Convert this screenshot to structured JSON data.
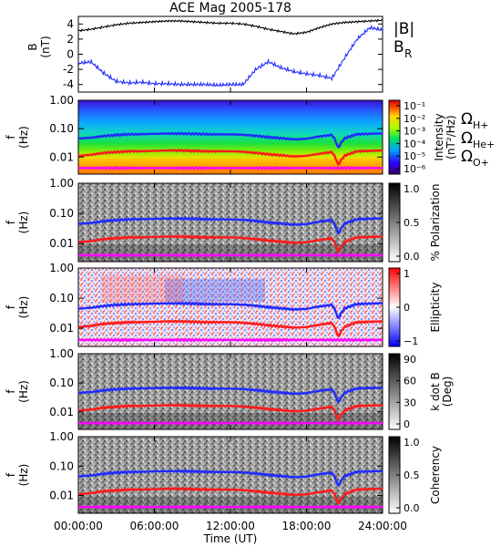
{
  "title": "ACE Mag 2005-178",
  "colors": {
    "black": "#000000",
    "hplus": "#1f2bff",
    "heplus": "#ff1a1a",
    "oplus": "#ff00ff",
    "br": "#1f2bff",
    "babs": "#000000"
  },
  "chart_data": [
    {
      "type": "line",
      "panel": "magnetic-field",
      "xlabel": "",
      "ylabel": "B",
      "yunit": "(nT)",
      "ylim": [
        -5,
        5
      ],
      "yticks": [
        "4",
        "2",
        "0",
        "-2",
        "-4"
      ],
      "x_hours": [
        0,
        1,
        2,
        3,
        4,
        5,
        6,
        7,
        8,
        9,
        10,
        11,
        12,
        13,
        14,
        15,
        16,
        17,
        18,
        19,
        20,
        21,
        22,
        23,
        24
      ],
      "series": [
        {
          "name": "|B|",
          "values": [
            3.1,
            3.3,
            3.6,
            3.9,
            4.1,
            4.2,
            4.3,
            4.4,
            4.4,
            4.3,
            4.2,
            4.1,
            4.1,
            4.0,
            3.7,
            3.3,
            3.0,
            2.7,
            2.9,
            3.5,
            4.0,
            4.2,
            4.3,
            4.4,
            4.5
          ]
        },
        {
          "name": "B_R",
          "values": [
            -1.2,
            -1.0,
            -2.5,
            -3.6,
            -3.8,
            -3.7,
            -3.9,
            -3.9,
            -4.0,
            -4.0,
            -4.0,
            -4.1,
            -4.0,
            -4.0,
            -2.0,
            -1.0,
            -1.8,
            -2.3,
            -2.6,
            -2.8,
            -3.2,
            -0.5,
            2.0,
            3.5,
            3.2
          ]
        }
      ]
    },
    {
      "type": "heatmap",
      "panel": "intensity",
      "ylabel": "f",
      "yunit": "(Hz)",
      "yscale": "log",
      "yticks": [
        "1.00",
        "0.10",
        "0.01"
      ],
      "colorbar_label": "Intensity",
      "colorbar_unit": "(nT²/Hz)",
      "colorbar_ticks": [
        "10⁻¹",
        "10⁻²",
        "10⁻³",
        "10⁻⁴",
        "10⁻⁵",
        "10⁻⁶"
      ]
    },
    {
      "type": "heatmap",
      "panel": "polarization",
      "ylabel": "f",
      "yunit": "(Hz)",
      "yscale": "log",
      "yticks": [
        "1.00",
        "0.10",
        "0.01"
      ],
      "colorbar_label": "% Polarization",
      "colorbar_ticks": [
        "1.0",
        "0.5",
        "0.0"
      ]
    },
    {
      "type": "heatmap",
      "panel": "ellipticity",
      "ylabel": "f",
      "yunit": "(Hz)",
      "yscale": "log",
      "yticks": [
        "1.00",
        "0.10",
        "0.01"
      ],
      "colorbar_label": "Ellipticity",
      "colorbar_ticks": [
        "1",
        "0",
        "−1"
      ]
    },
    {
      "type": "heatmap",
      "panel": "k-dot-b",
      "ylabel": "f",
      "yunit": "(Hz)",
      "yscale": "log",
      "yticks": [
        "1.00",
        "0.10",
        "0.01"
      ],
      "colorbar_label": "k dot B",
      "colorbar_unit": "(Deg)",
      "colorbar_ticks": [
        "90",
        "60",
        "30",
        "0"
      ]
    },
    {
      "type": "heatmap",
      "panel": "coherency",
      "ylabel": "f",
      "yunit": "(Hz)",
      "yscale": "log",
      "yticks": [
        "1.00",
        "0.10",
        "0.01"
      ],
      "colorbar_label": "Coherency",
      "colorbar_ticks": [
        "1.0",
        "0.5",
        "0.0"
      ]
    }
  ],
  "gyro_lines": {
    "x_hours": [
      0,
      1,
      2,
      3,
      4,
      5,
      6,
      7,
      8,
      9,
      10,
      11,
      12,
      13,
      14,
      15,
      16,
      17,
      18,
      19,
      20,
      20.5,
      21,
      22,
      23,
      24
    ],
    "hplus_hz": [
      0.045,
      0.048,
      0.055,
      0.06,
      0.063,
      0.064,
      0.066,
      0.067,
      0.067,
      0.066,
      0.064,
      0.063,
      0.063,
      0.061,
      0.056,
      0.05,
      0.046,
      0.042,
      0.044,
      0.053,
      0.06,
      0.02,
      0.045,
      0.064,
      0.066,
      0.068
    ],
    "heplus_hz": [
      0.011,
      0.012,
      0.014,
      0.015,
      0.016,
      0.016,
      0.0165,
      0.017,
      0.017,
      0.0165,
      0.016,
      0.016,
      0.016,
      0.0153,
      0.014,
      0.0125,
      0.0115,
      0.0105,
      0.011,
      0.013,
      0.015,
      0.005,
      0.011,
      0.016,
      0.0165,
      0.017
    ],
    "oplus_hz": [
      0.0041,
      0.0041,
      0.0041,
      0.0041,
      0.0041,
      0.0041,
      0.0041,
      0.0041,
      0.0041,
      0.0041,
      0.0041,
      0.0041,
      0.0041,
      0.0041,
      0.0041,
      0.0041,
      0.0041,
      0.0041,
      0.0041,
      0.0041,
      0.0041,
      0.0041,
      0.0041,
      0.0041,
      0.0041,
      0.0041
    ]
  },
  "legend": {
    "babs": "|B|",
    "br": "B",
    "br_sub": "R",
    "omega": "Ω",
    "hplus": "H+",
    "heplus": "He+",
    "oplus": "O+"
  },
  "xaxis": {
    "ticks": [
      "00:00:00",
      "06:00:00",
      "12:00:00",
      "18:00:00",
      "24:00:00"
    ],
    "label": "Time (UT)"
  }
}
